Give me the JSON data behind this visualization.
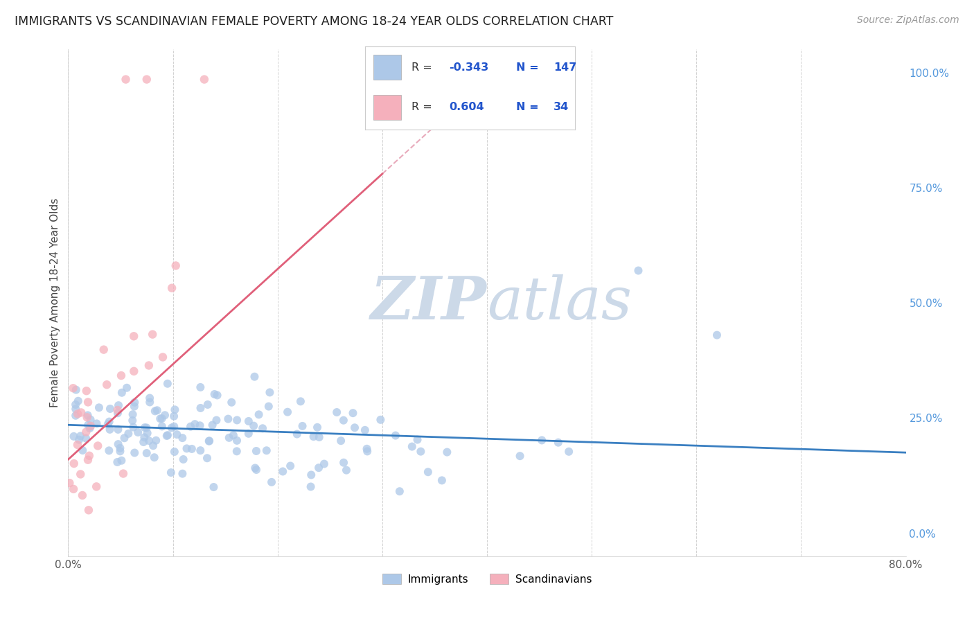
{
  "title": "IMMIGRANTS VS SCANDINAVIAN FEMALE POVERTY AMONG 18-24 YEAR OLDS CORRELATION CHART",
  "source": "Source: ZipAtlas.com",
  "ylabel": "Female Poverty Among 18-24 Year Olds",
  "xlim": [
    0.0,
    0.8
  ],
  "ylim": [
    -0.05,
    1.05
  ],
  "immigrants_R": -0.343,
  "immigrants_N": 147,
  "scandinavians_R": 0.604,
  "scandinavians_N": 34,
  "immigrants_color": "#adc8e8",
  "scandinavians_color": "#f5b0bc",
  "immigrants_line_color": "#3a7fc1",
  "scandinavians_line_color": "#e0607a",
  "scandinavians_dash_color": "#e8aabb",
  "watermark_color": "#ccd9e8",
  "background_color": "#ffffff",
  "grid_color": "#cccccc",
  "right_tick_color": "#5599dd",
  "title_color": "#222222",
  "source_color": "#999999",
  "ylabel_color": "#444444"
}
